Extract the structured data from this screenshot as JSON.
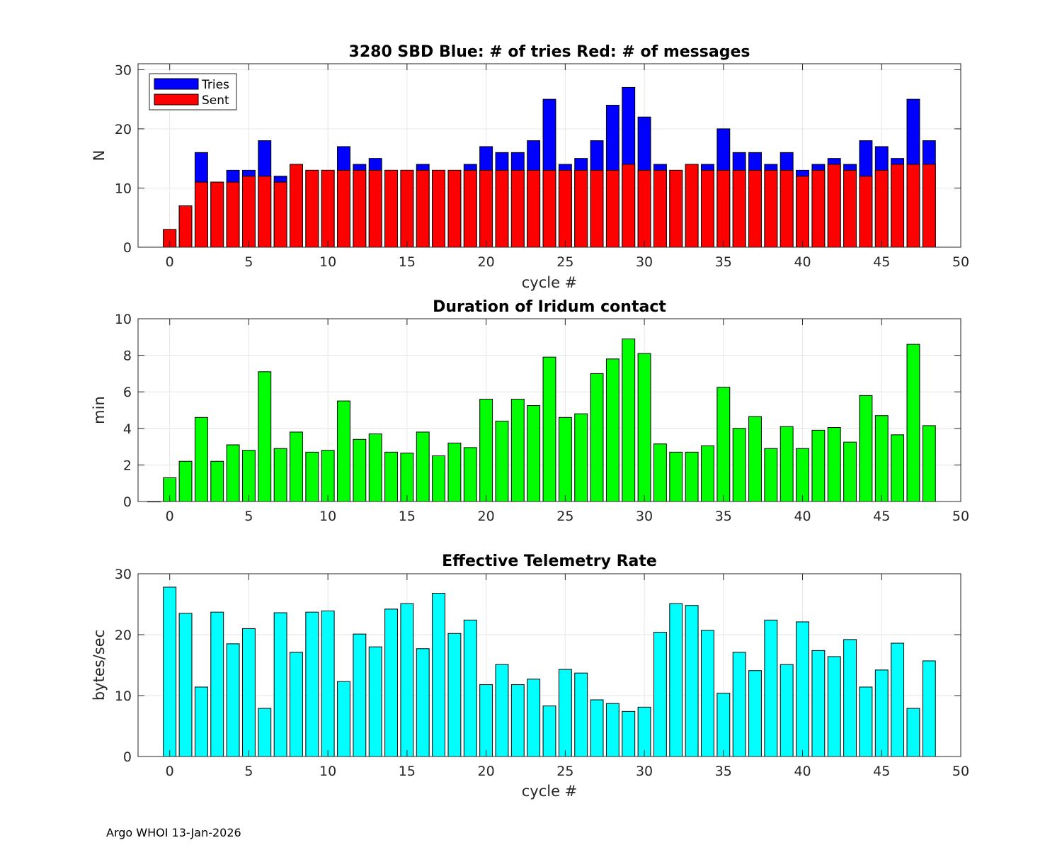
{
  "footer": "Argo WHOI 13-Jan-2026",
  "colors": {
    "tries": "#0000ff",
    "sent": "#ff0000",
    "duration": "#00ff00",
    "rate": "#00ffff",
    "grid": "#e6e6e6",
    "axis": "#262626"
  },
  "chart_data": [
    {
      "type": "bar",
      "title": "3280 SBD  Blue: # of tries   Red: # of messages",
      "xlabel": "cycle #",
      "ylabel": "N",
      "xlim": [
        -2,
        50
      ],
      "ylim": [
        0,
        31
      ],
      "xticks": [
        0,
        5,
        10,
        15,
        20,
        25,
        30,
        35,
        40,
        45,
        50
      ],
      "yticks": [
        0,
        10,
        20,
        30
      ],
      "grid": true,
      "legend": {
        "placement": "top-left",
        "entries": [
          "Tries",
          "Sent"
        ]
      },
      "x": [
        0,
        1,
        2,
        3,
        4,
        5,
        6,
        7,
        8,
        9,
        10,
        11,
        12,
        13,
        14,
        15,
        16,
        17,
        18,
        19,
        20,
        21,
        22,
        23,
        24,
        25,
        26,
        27,
        28,
        29,
        30,
        31,
        32,
        33,
        34,
        35,
        36,
        37,
        38,
        39,
        40,
        41,
        42,
        43,
        44,
        45,
        46,
        47,
        48
      ],
      "series": [
        {
          "name": "Tries",
          "values": [
            3,
            7,
            16,
            11,
            13,
            13,
            18,
            12,
            14,
            13,
            13,
            17,
            14,
            15,
            13,
            13,
            14,
            13,
            13,
            14,
            17,
            16,
            16,
            18,
            25,
            14,
            15,
            18,
            24,
            27,
            22,
            14,
            13,
            14,
            14,
            20,
            16,
            16,
            14,
            16,
            13,
            14,
            15,
            14,
            18,
            17,
            15,
            25,
            18
          ]
        },
        {
          "name": "Sent",
          "values": [
            3,
            7,
            11,
            11,
            11,
            12,
            12,
            11,
            14,
            13,
            13,
            13,
            13,
            13,
            13,
            13,
            13,
            13,
            13,
            13,
            13,
            13,
            13,
            13,
            13,
            13,
            13,
            13,
            13,
            14,
            13,
            13,
            13,
            14,
            13,
            13,
            13,
            13,
            13,
            13,
            12,
            13,
            14,
            13,
            12,
            13,
            14,
            14,
            14
          ]
        }
      ]
    },
    {
      "type": "bar",
      "title": "Duration of Iridum contact",
      "xlabel": "",
      "ylabel": "min",
      "xlim": [
        -2,
        50
      ],
      "ylim": [
        0,
        10
      ],
      "xticks": [
        0,
        5,
        10,
        15,
        20,
        25,
        30,
        35,
        40,
        45,
        50
      ],
      "yticks": [
        0,
        2,
        4,
        6,
        8,
        10
      ],
      "grid": true,
      "x": [
        -1,
        0,
        1,
        2,
        3,
        4,
        5,
        6,
        7,
        8,
        9,
        10,
        11,
        12,
        13,
        14,
        15,
        16,
        17,
        18,
        19,
        20,
        21,
        22,
        23,
        24,
        25,
        26,
        27,
        28,
        29,
        30,
        31,
        32,
        33,
        34,
        35,
        36,
        37,
        38,
        39,
        40,
        41,
        42,
        43,
        44,
        45,
        46,
        47,
        48
      ],
      "series": [
        {
          "name": "Duration",
          "values": [
            0,
            1.3,
            2.2,
            4.6,
            2.2,
            3.1,
            2.8,
            7.1,
            2.9,
            3.8,
            2.7,
            2.8,
            5.5,
            3.4,
            3.7,
            2.7,
            2.65,
            3.8,
            2.5,
            3.2,
            2.95,
            5.6,
            4.4,
            5.6,
            5.25,
            7.9,
            4.6,
            4.8,
            7.0,
            7.8,
            8.9,
            8.1,
            3.15,
            2.7,
            2.7,
            3.05,
            6.25,
            4.0,
            4.65,
            2.9,
            4.1,
            2.9,
            3.9,
            4.05,
            3.25,
            5.8,
            4.7,
            3.65,
            8.6,
            4.15
          ]
        }
      ]
    },
    {
      "type": "bar",
      "title": "Effective Telemetry Rate",
      "xlabel": "cycle #",
      "ylabel": "bytes/sec",
      "xlim": [
        -2,
        50
      ],
      "ylim": [
        0,
        30
      ],
      "xticks": [
        0,
        5,
        10,
        15,
        20,
        25,
        30,
        35,
        40,
        45,
        50
      ],
      "yticks": [
        0,
        10,
        20,
        30
      ],
      "grid": true,
      "x": [
        0,
        1,
        2,
        3,
        4,
        5,
        6,
        7,
        8,
        9,
        10,
        11,
        12,
        13,
        14,
        15,
        16,
        17,
        18,
        19,
        20,
        21,
        22,
        23,
        24,
        25,
        26,
        27,
        28,
        29,
        30,
        31,
        32,
        33,
        34,
        35,
        36,
        37,
        38,
        39,
        40,
        41,
        42,
        43,
        44,
        45,
        46,
        47,
        48
      ],
      "series": [
        {
          "name": "Rate",
          "values": [
            27.8,
            23.5,
            11.4,
            23.7,
            18.5,
            21.0,
            7.9,
            23.6,
            17.1,
            23.7,
            23.9,
            12.3,
            20.1,
            18.0,
            24.2,
            25.1,
            17.7,
            26.8,
            20.2,
            22.4,
            11.8,
            15.1,
            11.8,
            12.7,
            8.3,
            14.3,
            13.7,
            9.3,
            8.7,
            7.4,
            8.1,
            20.4,
            25.1,
            24.8,
            20.7,
            10.4,
            17.1,
            14.1,
            22.4,
            15.1,
            22.1,
            17.4,
            16.4,
            19.2,
            11.4,
            14.2,
            18.6,
            7.9,
            15.7
          ]
        }
      ]
    }
  ]
}
